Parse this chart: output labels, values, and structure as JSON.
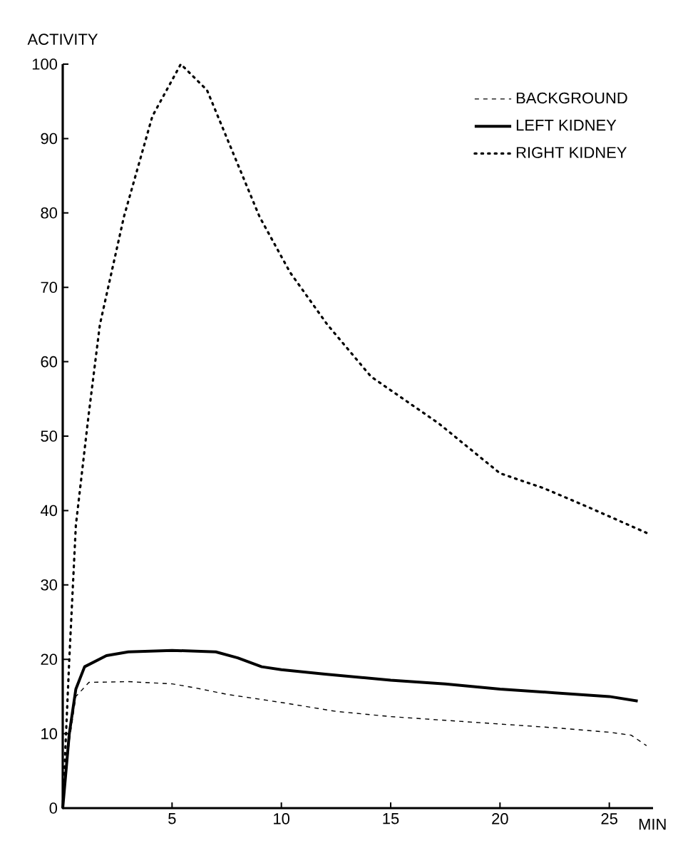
{
  "chart_data": {
    "type": "line",
    "xlabel": "MIN",
    "ylabel": "ACTIVITY",
    "xlim": [
      0,
      27
    ],
    "ylim": [
      0,
      100
    ],
    "xticks": [
      5,
      10,
      15,
      20,
      25
    ],
    "yticks": [
      0,
      10,
      20,
      30,
      40,
      50,
      60,
      70,
      80,
      90,
      100
    ],
    "grid": false,
    "legend": "top right",
    "series": [
      {
        "name": "BACKGROUND",
        "color": "#000000",
        "line_style": "dashed",
        "x": [
          0,
          0.3,
          0.6,
          1.2,
          3,
          5,
          6,
          7.5,
          10,
          12.5,
          15,
          17.5,
          20,
          22.5,
          25,
          26,
          26.7
        ],
        "values": [
          0,
          9,
          15,
          16.9,
          17,
          16.7,
          16.2,
          15.3,
          14.2,
          13,
          12.3,
          11.8,
          11.3,
          10.8,
          10.2,
          9.8,
          8.4
        ]
      },
      {
        "name": "LEFT KIDNEY",
        "color": "#000000",
        "line_style": "solid",
        "x": [
          0,
          0.3,
          0.6,
          1,
          2,
          3,
          5,
          7,
          8,
          9.1,
          10,
          12,
          15,
          17.5,
          20,
          22.5,
          25,
          26.3
        ],
        "values": [
          0,
          10,
          16,
          19,
          20.5,
          21,
          21.2,
          21,
          20.2,
          19,
          18.6,
          18,
          17.2,
          16.7,
          16,
          15.5,
          15,
          14.4
        ]
      },
      {
        "name": "RIGHT KIDNEY",
        "color": "#000000",
        "line_style": "dotted",
        "x": [
          0,
          0.3,
          0.6,
          1.17,
          1.7,
          2.8,
          4.1,
          5.4,
          6.6,
          7.8,
          9,
          10.4,
          12.1,
          14.1,
          17.2,
          20,
          22,
          24,
          26.7
        ],
        "values": [
          0,
          20,
          38,
          52.5,
          65,
          79.5,
          93,
          100,
          96.5,
          88,
          79.5,
          72,
          65,
          58,
          51.7,
          45,
          43,
          40.5,
          37
        ]
      }
    ]
  }
}
